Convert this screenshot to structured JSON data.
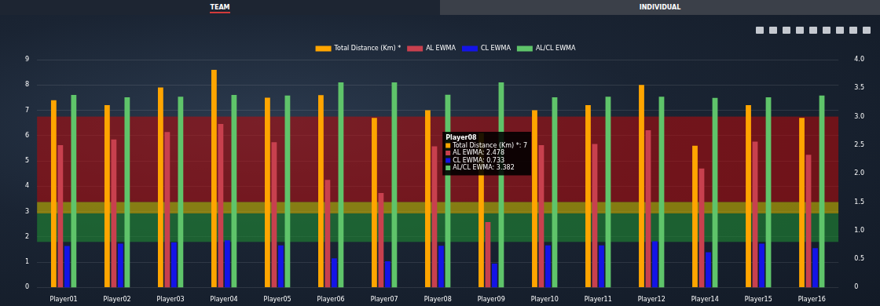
{
  "chart_data": {
    "type": "bar",
    "tabs": [
      "TEAM",
      "INDIVIDUAL"
    ],
    "categories": [
      "Player01",
      "Player02",
      "Player03",
      "Player04",
      "Player05",
      "Player06",
      "Player07",
      "Player08",
      "Player09",
      "Player10",
      "Player11",
      "Player12",
      "Player14",
      "Player15",
      "Player16"
    ],
    "series": [
      {
        "name": "Total Distance (Km) *",
        "color": "#ffa500",
        "values": [
          7.4,
          7.2,
          7.9,
          8.6,
          7.5,
          7.6,
          6.7,
          7,
          6.1,
          7.0,
          7.2,
          8.0,
          5.6,
          7.2,
          6.7
        ]
      },
      {
        "name": "AL EWMA",
        "color": "#c8404e",
        "axis": "y2",
        "values": [
          2.5,
          2.6,
          2.73,
          2.87,
          2.55,
          1.89,
          1.66,
          2.478,
          1.15,
          2.5,
          2.52,
          2.76,
          2.09,
          2.56,
          2.33
        ]
      },
      {
        "name": "CL EWMA",
        "color": "#1414e6",
        "axis": "y2",
        "values": [
          0.73,
          0.77,
          0.79,
          0.83,
          0.74,
          0.51,
          0.46,
          0.733,
          0.42,
          0.74,
          0.74,
          0.81,
          0.62,
          0.77,
          0.69
        ]
      },
      {
        "name": "AL/CL EWMA",
        "color": "#5fc46a",
        "axis": "y2",
        "values": [
          3.38,
          3.34,
          3.35,
          3.38,
          3.37,
          3.6,
          3.6,
          3.382,
          3.6,
          3.34,
          3.35,
          3.35,
          3.33,
          3.34,
          3.37
        ]
      }
    ],
    "ylim": [
      0,
      9
    ],
    "yticks": [
      0,
      1,
      2,
      3,
      4,
      5,
      6,
      7,
      8,
      9
    ],
    "y2lim": [
      0,
      4
    ],
    "y2ticks": [
      0,
      0.5,
      {
        "value": 1,
        "label": "1.0"
      },
      1.5,
      {
        "value": 2,
        "label": "2.0"
      },
      2.5,
      {
        "value": 3,
        "label": "3.0"
      },
      3.5,
      {
        "value": 4,
        "label": "4.0"
      }
    ],
    "grid": true,
    "legend": "top",
    "bands": [
      {
        "from": 1.5,
        "to": 3,
        "color": "rgba(185,10,10,0.55)"
      },
      {
        "from": 1.3,
        "to": 1.5,
        "color": "rgba(190,170,0,0.65)"
      },
      {
        "from": 0.8,
        "to": 1.3,
        "color": "rgba(30,130,50,0.65)"
      }
    ],
    "tooltip": {
      "title": "Player08",
      "lines": [
        "Total Distance (Km) *: 7",
        "AL EWMA: 2.478",
        "CL EWMA: 0.733",
        "AL/CL EWMA: 3.382"
      ]
    }
  }
}
